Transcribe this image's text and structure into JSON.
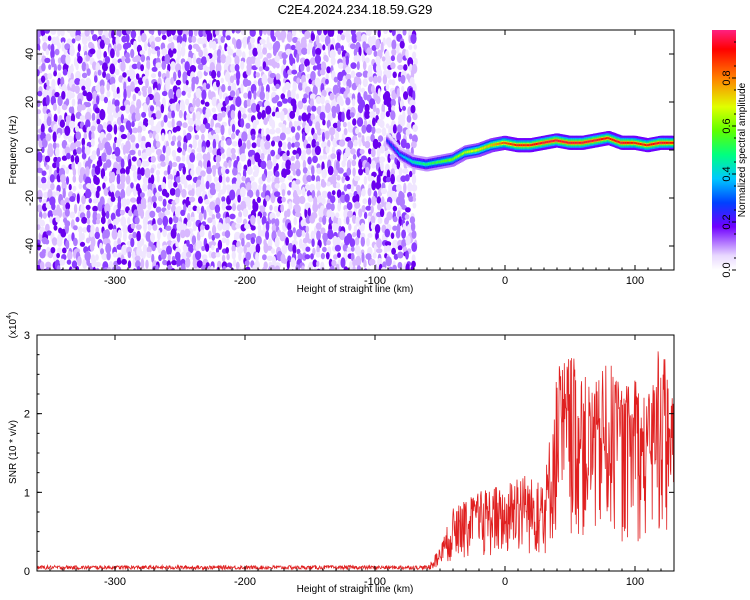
{
  "page": {
    "title": "C2E4.2024.234.18.59.G29"
  },
  "chart_data": [
    {
      "type": "heatmap",
      "title": "C2E4.2024.234.18.59.G29",
      "xlabel": "Height of straight line (km)",
      "ylabel": "Frequency (Hz)",
      "xlim": [
        -360,
        130
      ],
      "ylim": [
        -50,
        50
      ],
      "xticks": [
        -300,
        -200,
        -100,
        0,
        100
      ],
      "yticks": [
        -40,
        -20,
        0,
        20,
        40
      ],
      "grid": false,
      "noise_region": {
        "x_start": -360,
        "x_end": -70,
        "description_value": "uniform noise"
      },
      "signal_track": {
        "x": [
          -90,
          -80,
          -70,
          -60,
          -50,
          -40,
          -30,
          -20,
          -10,
          0,
          10,
          20,
          30,
          40,
          50,
          60,
          70,
          80,
          90,
          100,
          110,
          120,
          130
        ],
        "frequency": [
          4,
          -2,
          -5,
          -6,
          -5,
          -4,
          -1,
          0,
          2,
          3,
          2,
          2,
          3,
          4,
          3,
          3,
          4,
          5,
          3,
          3,
          2,
          3,
          3
        ],
        "amplitude": [
          0.25,
          0.35,
          0.45,
          0.5,
          0.55,
          0.6,
          0.65,
          0.7,
          0.75,
          0.85,
          0.9,
          0.9,
          0.95,
          0.95,
          0.95,
          0.95,
          0.95,
          0.9,
          0.95,
          0.9,
          0.9,
          0.95,
          0.9
        ]
      },
      "colorbar": {
        "label": "Normalized spectral amplitude",
        "range": [
          0,
          1
        ],
        "ticks": [
          "0.0",
          "0.2",
          "0.4",
          "0.6",
          "0.8"
        ]
      }
    },
    {
      "type": "line",
      "xlabel": "Height of straight line (km)",
      "ylabel": "SNR (10 * v/v)",
      "yscale_label": "(x10",
      "yscale_exponent": "4",
      "yscale_close": ")",
      "xlim": [
        -360,
        130
      ],
      "ylim": [
        0,
        3
      ],
      "xticks": [
        -300,
        -200,
        -100,
        0,
        100
      ],
      "yticks": [
        0,
        1,
        2,
        3
      ],
      "series": [
        {
          "color": "#e02020",
          "envelope_x": [
            -360,
            -60,
            -50,
            -40,
            -30,
            -20,
            -10,
            0,
            10,
            20,
            30,
            40,
            50,
            60,
            70,
            80,
            90,
            100,
            110,
            120,
            125,
            130
          ],
          "envelope_y": [
            0.05,
            0.05,
            0.3,
            0.8,
            0.9,
            1.0,
            1.1,
            1.05,
            1.3,
            1.2,
            1.1,
            2.6,
            2.8,
            2.5,
            2.4,
            2.7,
            2.3,
            2.5,
            2.2,
            3.0,
            2.6,
            2.1
          ]
        }
      ]
    }
  ]
}
